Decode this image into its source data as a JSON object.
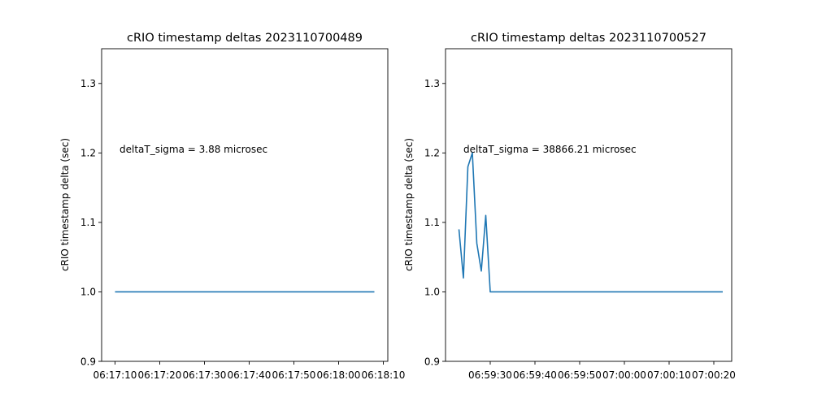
{
  "chart_data": [
    {
      "type": "line",
      "title": "cRIO timestamp deltas 2023110700489",
      "ylabel": "cRIO timestamp delta (sec)",
      "xlabel": "",
      "annotation": "deltaT_sigma = 3.88 microsec",
      "ylim": [
        0.9,
        1.35
      ],
      "yticks": [
        0.9,
        1.0,
        1.1,
        1.2,
        1.3
      ],
      "ytick_labels": [
        "0.9",
        "1.0",
        "1.1",
        "1.2",
        "1.3"
      ],
      "xlim": [
        "06:17:07",
        "06:18:11"
      ],
      "xticks": [
        "06:17:10",
        "06:17:20",
        "06:17:30",
        "06:17:40",
        "06:17:50",
        "06:18:00",
        "06:18:10"
      ],
      "grid": false,
      "line_color": "#1f77b4",
      "series": [
        {
          "x": [
            "06:17:10",
            "06:18:08"
          ],
          "y": [
            1.0,
            1.0
          ]
        }
      ]
    },
    {
      "type": "line",
      "title": "cRIO timestamp deltas 2023110700527",
      "ylabel": "cRIO timestamp delta (sec)",
      "xlabel": "",
      "annotation": "deltaT_sigma = 38866.21 microsec",
      "ylim": [
        0.9,
        1.35
      ],
      "yticks": [
        0.9,
        1.0,
        1.1,
        1.2,
        1.3
      ],
      "ytick_labels": [
        "0.9",
        "1.0",
        "1.1",
        "1.2",
        "1.3"
      ],
      "xlim": [
        "06:59:20",
        "07:00:24"
      ],
      "xticks": [
        "06:59:30",
        "06:59:40",
        "06:59:50",
        "07:00:00",
        "07:00:10",
        "07:00:20"
      ],
      "grid": false,
      "line_color": "#1f77b4",
      "series": [
        {
          "x": [
            "06:59:23",
            "06:59:24",
            "06:59:25",
            "06:59:26",
            "06:59:27",
            "06:59:28",
            "06:59:29",
            "06:59:30",
            "06:59:31",
            "07:00:22"
          ],
          "y": [
            1.09,
            1.02,
            1.18,
            1.2,
            1.07,
            1.03,
            1.11,
            1.0,
            1.0,
            1.0
          ]
        }
      ]
    }
  ]
}
